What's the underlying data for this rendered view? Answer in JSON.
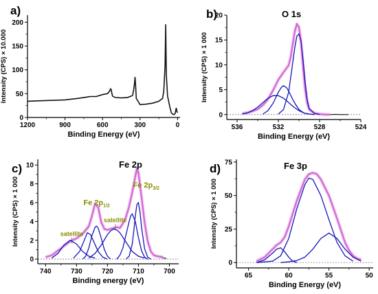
{
  "colors": {
    "axis": "#000000",
    "data_curve": "#111111",
    "envelope": "#cf63cf",
    "envelope_halo": "#f0c0f0",
    "component": "#1414b8",
    "baseline": "#666666",
    "annotation": "#8a8a00"
  },
  "chart_data": [
    {
      "panel_label": "a)",
      "type": "line",
      "title": "",
      "xlabel": "Binding Energy (eV)",
      "ylabel": "Intensity (CPS) × 10.000",
      "xlim": [
        1200,
        -20
      ],
      "ylim": [
        0,
        215
      ],
      "xticks": [
        1200,
        900,
        600,
        300,
        0
      ],
      "yticks": [
        0,
        50,
        100,
        150,
        200
      ],
      "series": [
        {
          "role": "survey",
          "x": [
            1200,
            1100,
            1000,
            900,
            800,
            720,
            700,
            650,
            600,
            560,
            545,
            535,
            530,
            528,
            520,
            500,
            450,
            400,
            360,
            350,
            345,
            340,
            335,
            330,
            300,
            250,
            200,
            150,
            120,
            110,
            100,
            95,
            90,
            80,
            60,
            55,
            50,
            40,
            30,
            20,
            10,
            5,
            0
          ],
          "y": [
            34,
            35,
            36,
            37,
            40,
            43,
            44,
            44,
            48,
            50,
            55,
            60,
            58,
            54,
            45,
            42,
            41,
            42,
            46,
            60,
            70,
            85,
            65,
            40,
            27,
            28,
            30,
            34,
            40,
            55,
            110,
            196,
            90,
            45,
            20,
            15,
            10,
            7,
            6,
            8,
            20,
            12,
            10
          ]
        }
      ]
    },
    {
      "panel_label": "b)",
      "type": "line",
      "title": "O 1s",
      "xlabel": "Binding Energy (eV)",
      "ylabel": "Intensity (CPS) × 1 000",
      "xlim": [
        537,
        524
      ],
      "ylim": [
        -1,
        20
      ],
      "xticks": [
        536,
        532,
        528,
        524
      ],
      "yticks": [
        0,
        5,
        10,
        15,
        20
      ],
      "series": [
        {
          "role": "experimental",
          "x": [
            535.5,
            535,
            534.5,
            534,
            533.5,
            533,
            532.5,
            532,
            531.5,
            531,
            530.8,
            530.6,
            530.4,
            530.2,
            530,
            529.8,
            529.6,
            529.4,
            529.2,
            529,
            528.5,
            528,
            527.5,
            527,
            526.5,
            526,
            525.5,
            525.2
          ],
          "y": [
            0.3,
            0.4,
            0.6,
            1.0,
            1.8,
            3.0,
            4.8,
            7.0,
            8.6,
            9.8,
            11.5,
            14.0,
            16.5,
            18.0,
            17.5,
            14.5,
            9.5,
            5.0,
            2.2,
            1.0,
            0.3,
            0.1,
            0,
            0,
            0.05,
            0,
            0,
            0
          ]
        },
        {
          "role": "envelope",
          "x": [
            535.5,
            535,
            534.5,
            534,
            533.5,
            533,
            532.5,
            532,
            531.5,
            531,
            530.8,
            530.6,
            530.4,
            530.2,
            530,
            529.8,
            529.6,
            529.4,
            529.2,
            529,
            528.5,
            528,
            527.5,
            527
          ],
          "y": [
            0.2,
            0.4,
            0.7,
            1.1,
            1.9,
            3.1,
            4.9,
            7.0,
            8.5,
            9.9,
            11.6,
            14.2,
            16.8,
            18.2,
            17.6,
            14.6,
            9.6,
            5.1,
            2.3,
            1.0,
            0.3,
            0.1,
            0,
            0
          ]
        },
        {
          "role": "component",
          "x": [
            535.5,
            535,
            534.5,
            534,
            533.5,
            533,
            532.5,
            532,
            531.5,
            531,
            530.5,
            530,
            529.5,
            529,
            528.5
          ],
          "y": [
            0.1,
            0.3,
            0.8,
            1.5,
            2.4,
            3.3,
            3.8,
            3.8,
            3.3,
            2.4,
            1.5,
            0.8,
            0.3,
            0.1,
            0
          ]
        },
        {
          "role": "component",
          "x": [
            533.5,
            533,
            532.5,
            532,
            531.7,
            531.5,
            531.2,
            531,
            530.5,
            530,
            529.5,
            529
          ],
          "y": [
            0.1,
            0.8,
            2.3,
            4.5,
            5.5,
            5.8,
            5.4,
            4.7,
            2.6,
            1.0,
            0.3,
            0.1
          ]
        },
        {
          "role": "component",
          "x": [
            532,
            531.5,
            531,
            530.7,
            530.4,
            530.2,
            530,
            529.8,
            529.6,
            529.4,
            529.2,
            529,
            528.5,
            528
          ],
          "y": [
            0.1,
            1.0,
            4.5,
            9.0,
            13.5,
            15.8,
            16.2,
            14.8,
            11.0,
            6.5,
            3.0,
            1.2,
            0.2,
            0
          ]
        }
      ]
    },
    {
      "panel_label": "c)",
      "type": "line",
      "title": "Fe 2p",
      "xlabel": "Binding energy (eV)",
      "ylabel": "Intensity (CPS) × 1 000",
      "xlim": [
        742.5,
        697
      ],
      "ylim": [
        -0.5,
        10.6
      ],
      "xticks": [
        740,
        730,
        720,
        710,
        700
      ],
      "yticks": [
        0,
        2,
        4,
        6,
        8,
        10
      ],
      "annotations": [
        {
          "text": "satellite",
          "x": 731.5,
          "y": 2.45
        },
        {
          "text": "Fe 2p",
          "sub": "1/2",
          "x": 723.5,
          "y": 5.75
        },
        {
          "text": "satellite",
          "x": 717.5,
          "y": 3.9
        },
        {
          "text": "Fe 2p",
          "sub": "3/2",
          "x": 707.5,
          "y": 7.6
        }
      ],
      "series": [
        {
          "role": "experimental",
          "x": [
            740,
            738,
            736,
            734,
            732,
            730,
            728,
            726,
            725,
            724,
            723,
            722,
            721,
            720,
            719,
            718,
            717,
            716,
            715,
            714,
            713,
            712,
            711,
            710.5,
            710,
            709,
            708,
            707,
            706,
            705,
            704,
            703,
            702,
            701
          ],
          "y": [
            0.2,
            0.4,
            0.9,
            1.4,
            1.9,
            2.2,
            2.6,
            3.4,
            4.5,
            5.8,
            5.4,
            3.8,
            3.2,
            3.1,
            3.2,
            3.3,
            3.4,
            3.3,
            3.8,
            4.4,
            5.5,
            7.0,
            8.6,
            9.4,
            9.0,
            6.5,
            3.8,
            1.8,
            0.8,
            0.4,
            0.3,
            0.2,
            0.1,
            0.1
          ]
        },
        {
          "role": "envelope",
          "x": [
            740,
            738,
            736,
            734,
            732,
            730,
            728,
            726,
            725,
            724,
            723,
            722,
            721,
            720,
            719,
            718,
            717,
            716,
            715,
            714,
            713,
            712,
            711,
            710.5,
            710,
            709,
            708,
            707,
            706,
            705,
            704,
            702
          ],
          "y": [
            0.2,
            0.4,
            0.9,
            1.4,
            1.9,
            2.2,
            2.7,
            3.5,
            4.6,
            5.9,
            5.5,
            3.9,
            3.2,
            3.1,
            3.2,
            3.3,
            3.4,
            3.3,
            3.8,
            4.5,
            5.6,
            7.1,
            8.8,
            9.6,
            9.2,
            6.6,
            3.9,
            1.9,
            0.8,
            0.4,
            0.3,
            0.2
          ]
        },
        {
          "role": "component",
          "x": [
            738,
            736,
            734,
            732,
            730,
            728,
            726,
            724
          ],
          "y": [
            0.1,
            0.6,
            1.5,
            2.0,
            1.6,
            0.8,
            0.3,
            0.1
          ]
        },
        {
          "role": "component",
          "x": [
            731,
            729,
            727.5,
            726.5,
            725.5,
            724.5,
            723,
            721.5,
            720
          ],
          "y": [
            0.1,
            0.8,
            2.0,
            2.8,
            2.6,
            1.9,
            0.8,
            0.2,
            0
          ]
        },
        {
          "role": "component",
          "x": [
            728,
            727,
            726,
            725,
            724,
            723.5,
            723,
            722,
            721,
            720,
            719
          ],
          "y": [
            0,
            0.3,
            1.2,
            2.5,
            3.4,
            3.5,
            3.3,
            2.2,
            1.0,
            0.3,
            0
          ]
        },
        {
          "role": "component",
          "x": [
            726,
            724,
            722,
            720,
            719,
            718,
            717,
            716,
            714,
            712,
            710,
            708
          ],
          "y": [
            0.1,
            0.6,
            1.5,
            2.6,
            3.0,
            3.2,
            3.1,
            2.8,
            1.8,
            0.8,
            0.3,
            0.1
          ]
        },
        {
          "role": "component",
          "x": [
            717,
            716,
            715,
            714,
            713,
            712.5,
            712,
            711,
            710,
            709,
            708,
            707
          ],
          "y": [
            0,
            0.4,
            1.2,
            2.6,
            4.0,
            4.6,
            4.8,
            4.0,
            2.3,
            0.9,
            0.2,
            0
          ]
        },
        {
          "role": "component",
          "x": [
            714,
            713,
            712,
            711.5,
            711,
            710.5,
            710,
            709.5,
            709,
            708,
            707,
            706
          ],
          "y": [
            0,
            0.3,
            1.6,
            3.0,
            4.6,
            5.8,
            6.0,
            5.0,
            3.4,
            1.1,
            0.2,
            0
          ]
        }
      ]
    },
    {
      "panel_label": "d)",
      "type": "line",
      "title": "Fe 3p",
      "xlabel": "Binding Energy (eV)",
      "ylabel": "Intensity (CPS) × 1 000",
      "xlim": [
        66.5,
        49.5
      ],
      "ylim": [
        -4,
        77
      ],
      "xticks": [
        65,
        60,
        55,
        50
      ],
      "yticks": [
        0,
        25,
        50,
        75
      ],
      "series": [
        {
          "role": "experimental",
          "x": [
            64,
            63,
            62,
            61.5,
            61,
            60.5,
            60,
            59,
            58,
            57.5,
            57,
            56.5,
            56,
            55,
            54,
            53,
            52.5,
            52,
            51.5,
            51
          ],
          "y": [
            1,
            4,
            10,
            13,
            15,
            19,
            27,
            46,
            62,
            66,
            67,
            66,
            62,
            50,
            33,
            15,
            9,
            5,
            3,
            2
          ]
        },
        {
          "role": "envelope",
          "x": [
            64,
            63,
            62,
            61.5,
            61,
            60.5,
            60,
            59,
            58,
            57.5,
            57,
            56.5,
            56,
            55,
            54,
            53,
            52.5,
            52,
            51.5,
            51
          ],
          "y": [
            1,
            4,
            10,
            13,
            15,
            19,
            27,
            46,
            62,
            66,
            67,
            66,
            62,
            50,
            33,
            15,
            9,
            5,
            3,
            2
          ]
        },
        {
          "role": "component",
          "x": [
            64,
            63,
            62,
            61.5,
            61,
            60.5,
            60,
            59.5,
            59
          ],
          "y": [
            0,
            2,
            7,
            10,
            11,
            8,
            4,
            1,
            0
          ]
        },
        {
          "role": "component",
          "x": [
            64,
            62,
            61,
            60,
            59,
            58,
            57.5,
            57,
            56,
            55,
            54,
            53,
            52
          ],
          "y": [
            0,
            1,
            5,
            18,
            40,
            58,
            63,
            62,
            50,
            32,
            15,
            5,
            1
          ]
        },
        {
          "role": "component",
          "x": [
            61,
            60,
            59,
            58,
            57,
            56,
            55,
            54,
            53,
            52,
            51
          ],
          "y": [
            0,
            0.5,
            1.5,
            4,
            10,
            18,
            22,
            18,
            10,
            4,
            1
          ]
        }
      ]
    }
  ]
}
